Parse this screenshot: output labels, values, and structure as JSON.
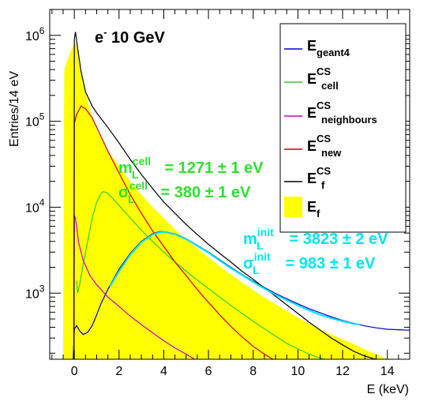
{
  "chart_data": {
    "type": "line",
    "title": {
      "main": "e",
      "sup": "-",
      "rest": " 10 GeV"
    },
    "xlabel": "E (keV)",
    "ylabel": "Entries/14 eV",
    "xlim": [
      -1.1,
      15
    ],
    "ylim": [
      170,
      2000000
    ],
    "log_y": true,
    "x_ticks": [
      0,
      2,
      4,
      6,
      8,
      10,
      12,
      14
    ],
    "y_ticks": [
      {
        "value": 1000,
        "base": "10",
        "exp": "3"
      },
      {
        "value": 10000,
        "base": "10",
        "exp": "4"
      },
      {
        "value": 100000,
        "base": "10",
        "exp": "5"
      },
      {
        "value": 1000000,
        "base": "10",
        "exp": "6"
      }
    ],
    "legend_position": "top-right",
    "legend": [
      {
        "id": "geant4",
        "main": "E",
        "sub": "geant4",
        "sup": "",
        "color": "#0000cc",
        "style": "line"
      },
      {
        "id": "cell",
        "main": "E",
        "sub": "cell",
        "sup": "CS",
        "color": "#33cc33",
        "style": "line"
      },
      {
        "id": "neighbours",
        "main": "E",
        "sub": "neighbours",
        "sup": "CS",
        "color": "#cc00cc",
        "style": "line"
      },
      {
        "id": "new",
        "main": "E",
        "sub": "new",
        "sup": "CS",
        "color": "#cc0000",
        "style": "line"
      },
      {
        "id": "fcs",
        "main": "E",
        "sub": "f",
        "sup": "CS",
        "color": "#000000",
        "style": "line"
      },
      {
        "id": "f",
        "main": "E",
        "sub": "f",
        "sup": "",
        "color": "#ffff00",
        "style": "fill"
      }
    ],
    "annotations": [
      {
        "id": "cell",
        "color": "#33dd33",
        "m_label": "m",
        "m_sub": "L",
        "m_sup": "cell",
        "m_value": " = 1271 ± 1 eV",
        "s_label": "σ",
        "s_sub": "L",
        "s_sup": "cell",
        "s_value": " = 380 ± 1 eV"
      },
      {
        "id": "init",
        "color": "#00e5ee",
        "m_label": "m",
        "m_sub": "L",
        "m_sup": "init",
        "m_value": " = 3823 ± 2 eV",
        "s_label": "σ",
        "s_sub": "L",
        "s_sup": "init",
        "s_value": " = 983 ± 1 eV"
      }
    ],
    "series": [
      {
        "name": "E_f",
        "color": "#ffff00",
        "style": "fill",
        "points": [
          [
            -0.5,
            170
          ],
          [
            -0.45,
            400000
          ],
          [
            -0.3,
            520000
          ],
          [
            -0.1,
            700000
          ],
          [
            0,
            800000
          ],
          [
            0.05,
            820000
          ],
          [
            0.2,
            600000
          ],
          [
            0.4,
            300000
          ],
          [
            0.6,
            170000
          ],
          [
            0.8,
            110000
          ],
          [
            1,
            80000
          ],
          [
            1.5,
            45000
          ],
          [
            2,
            30000
          ],
          [
            2.5,
            20000
          ],
          [
            3,
            14000
          ],
          [
            3.5,
            10000
          ],
          [
            4,
            7500
          ],
          [
            4.5,
            5500
          ],
          [
            5,
            4200
          ],
          [
            5.5,
            3300
          ],
          [
            6,
            2600
          ],
          [
            6.5,
            2050
          ],
          [
            7,
            1650
          ],
          [
            7.5,
            1330
          ],
          [
            8,
            1080
          ],
          [
            8.5,
            890
          ],
          [
            9,
            740
          ],
          [
            9.5,
            620
          ],
          [
            10,
            520
          ],
          [
            10.5,
            440
          ],
          [
            11,
            380
          ],
          [
            11.5,
            330
          ],
          [
            12,
            290
          ],
          [
            12.5,
            255
          ],
          [
            13,
            220
          ],
          [
            13.5,
            195
          ],
          [
            13.9,
            175
          ],
          [
            14,
            170
          ]
        ]
      },
      {
        "name": "E_geant4",
        "color": "#0000cc",
        "style": "line",
        "points": [
          [
            -0.05,
            170
          ],
          [
            0,
            380
          ],
          [
            0.1,
            420
          ],
          [
            0.25,
            360
          ],
          [
            0.4,
            330
          ],
          [
            0.6,
            350
          ],
          [
            0.8,
            420
          ],
          [
            1,
            560
          ],
          [
            1.2,
            760
          ],
          [
            1.5,
            1100
          ],
          [
            2,
            1900
          ],
          [
            2.5,
            2900
          ],
          [
            3,
            4000
          ],
          [
            3.5,
            4900
          ],
          [
            3.8,
            5200
          ],
          [
            4,
            5200
          ],
          [
            4.5,
            4900
          ],
          [
            5,
            4300
          ],
          [
            5.5,
            3600
          ],
          [
            6,
            3000
          ],
          [
            6.5,
            2450
          ],
          [
            7,
            2000
          ],
          [
            7.5,
            1650
          ],
          [
            8,
            1380
          ],
          [
            8.5,
            1160
          ],
          [
            9,
            990
          ],
          [
            9.5,
            860
          ],
          [
            10,
            750
          ],
          [
            10.5,
            660
          ],
          [
            11,
            590
          ],
          [
            11.5,
            530
          ],
          [
            12,
            480
          ],
          [
            12.5,
            445
          ],
          [
            13,
            415
          ],
          [
            13.5,
            395
          ],
          [
            14,
            380
          ],
          [
            14.5,
            375
          ],
          [
            15,
            370
          ]
        ]
      },
      {
        "name": "E_cell_CS",
        "color": "#33cc33",
        "style": "line",
        "points": [
          [
            0.1,
            1400
          ],
          [
            0.15,
            1000
          ],
          [
            0.25,
            1300
          ],
          [
            0.4,
            2200
          ],
          [
            0.6,
            4000
          ],
          [
            0.8,
            7500
          ],
          [
            1,
            11500
          ],
          [
            1.2,
            14500
          ],
          [
            1.3,
            15200
          ],
          [
            1.5,
            14500
          ],
          [
            2,
            10500
          ],
          [
            2.5,
            7500
          ],
          [
            3,
            5400
          ],
          [
            3.5,
            4000
          ],
          [
            4,
            3000
          ],
          [
            4.5,
            2300
          ],
          [
            5,
            1800
          ],
          [
            5.5,
            1420
          ],
          [
            6,
            1130
          ],
          [
            6.5,
            900
          ],
          [
            7,
            720
          ],
          [
            7.5,
            580
          ],
          [
            8,
            470
          ],
          [
            8.5,
            385
          ],
          [
            9,
            315
          ],
          [
            9.5,
            260
          ],
          [
            10,
            225
          ],
          [
            10.5,
            195
          ],
          [
            11,
            175
          ],
          [
            11.2,
            170
          ]
        ]
      },
      {
        "name": "E_neighbours_CS",
        "color": "#cc00cc",
        "style": "line",
        "points": [
          [
            -0.02,
            170
          ],
          [
            0,
            8000
          ],
          [
            0.05,
            7500
          ],
          [
            0.2,
            3800
          ],
          [
            0.4,
            2400
          ],
          [
            0.7,
            1600
          ],
          [
            1,
            1250
          ],
          [
            1.5,
            900
          ],
          [
            2,
            700
          ],
          [
            2.5,
            540
          ],
          [
            3,
            430
          ],
          [
            3.5,
            345
          ],
          [
            4,
            280
          ],
          [
            4.5,
            230
          ],
          [
            5,
            195
          ],
          [
            5.3,
            175
          ],
          [
            5.4,
            170
          ]
        ]
      },
      {
        "name": "E_new_CS",
        "color": "#cc0000",
        "style": "line",
        "points": [
          [
            -0.02,
            170
          ],
          [
            0,
            95000
          ],
          [
            0.1,
            120000
          ],
          [
            0.3,
            150000
          ],
          [
            0.5,
            140000
          ],
          [
            0.8,
            110000
          ],
          [
            1,
            85000
          ],
          [
            1.5,
            45000
          ],
          [
            2,
            25000
          ],
          [
            2.5,
            14000
          ],
          [
            3,
            8500
          ],
          [
            3.5,
            5300
          ],
          [
            4,
            3500
          ],
          [
            4.5,
            2300
          ],
          [
            5,
            1600
          ],
          [
            5.5,
            1100
          ],
          [
            6,
            780
          ],
          [
            6.5,
            560
          ],
          [
            7,
            410
          ],
          [
            7.5,
            310
          ],
          [
            8,
            240
          ],
          [
            8.5,
            195
          ],
          [
            8.8,
            175
          ],
          [
            8.9,
            170
          ]
        ]
      },
      {
        "name": "E_f_CS",
        "color": "#000000",
        "style": "line",
        "points": [
          [
            -0.02,
            170
          ],
          [
            0,
            900000
          ],
          [
            0.05,
            1100000
          ],
          [
            0.15,
            700000
          ],
          [
            0.3,
            380000
          ],
          [
            0.5,
            220000
          ],
          [
            0.8,
            150000
          ],
          [
            1,
            125000
          ],
          [
            1.5,
            85000
          ],
          [
            2,
            56000
          ],
          [
            2.5,
            36000
          ],
          [
            3,
            24000
          ],
          [
            3.5,
            16500
          ],
          [
            4,
            11500
          ],
          [
            4.5,
            8500
          ],
          [
            5,
            6300
          ],
          [
            5.5,
            4800
          ],
          [
            6,
            3700
          ],
          [
            6.5,
            2900
          ],
          [
            7,
            2300
          ],
          [
            7.5,
            1800
          ],
          [
            8,
            1450
          ],
          [
            8.5,
            1150
          ],
          [
            9,
            920
          ],
          [
            9.5,
            730
          ],
          [
            10,
            580
          ],
          [
            10.5,
            460
          ],
          [
            11,
            370
          ],
          [
            11.5,
            300
          ],
          [
            12,
            250
          ],
          [
            12.5,
            210
          ],
          [
            13,
            185
          ],
          [
            13.4,
            172
          ],
          [
            13.5,
            170
          ]
        ]
      },
      {
        "name": "E_init_fit",
        "color": "#00e5ee",
        "style": "line",
        "points": [
          [
            1.6,
            1200
          ],
          [
            2,
            1800
          ],
          [
            2.5,
            2800
          ],
          [
            3,
            3900
          ],
          [
            3.5,
            4800
          ],
          [
            3.8,
            5100
          ],
          [
            4,
            5150
          ],
          [
            4.5,
            4850
          ],
          [
            5,
            4250
          ],
          [
            5.5,
            3550
          ],
          [
            6,
            2950
          ],
          [
            6.5,
            2400
          ],
          [
            7,
            1950
          ],
          [
            7.5,
            1620
          ],
          [
            8,
            1350
          ],
          [
            8.5,
            1130
          ],
          [
            9,
            960
          ],
          [
            9.5,
            830
          ],
          [
            10,
            720
          ],
          [
            10.5,
            630
          ],
          [
            11,
            560
          ],
          [
            11.5,
            510
          ],
          [
            12,
            470
          ],
          [
            12.5,
            440
          ],
          [
            12.8,
            430
          ]
        ]
      }
    ]
  }
}
